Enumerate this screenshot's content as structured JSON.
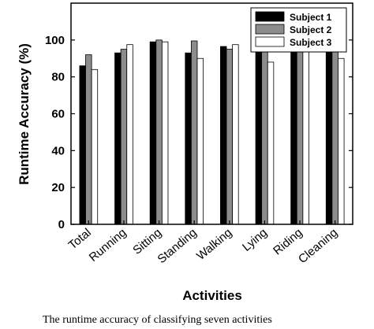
{
  "chart_data": {
    "type": "bar",
    "xlabel": "Activities",
    "ylabel": "Runtime Accuracy (%)",
    "ylim": [
      0,
      120
    ],
    "yticks": [
      0,
      20,
      40,
      60,
      80,
      100
    ],
    "grid": false,
    "legend_position": "top-right",
    "categories": [
      "Total",
      "Running",
      "Sitting",
      "Standing",
      "Walking",
      "Lying",
      "Riding",
      "Cleaning"
    ],
    "series": [
      {
        "name": "Subject 1",
        "color": "#000000",
        "values": [
          86,
          93,
          99,
          93,
          96.5,
          97,
          94,
          100
        ]
      },
      {
        "name": "Subject 2",
        "color": "#8c8c8c",
        "values": [
          92,
          95,
          100,
          99.5,
          95,
          99.5,
          100,
          95.5
        ]
      },
      {
        "name": "Subject 3",
        "color": "#ffffff",
        "values": [
          84,
          97.5,
          99,
          90,
          97.5,
          88,
          96,
          90
        ]
      }
    ]
  },
  "caption": "The runtime accuracy of classifying seven activities"
}
